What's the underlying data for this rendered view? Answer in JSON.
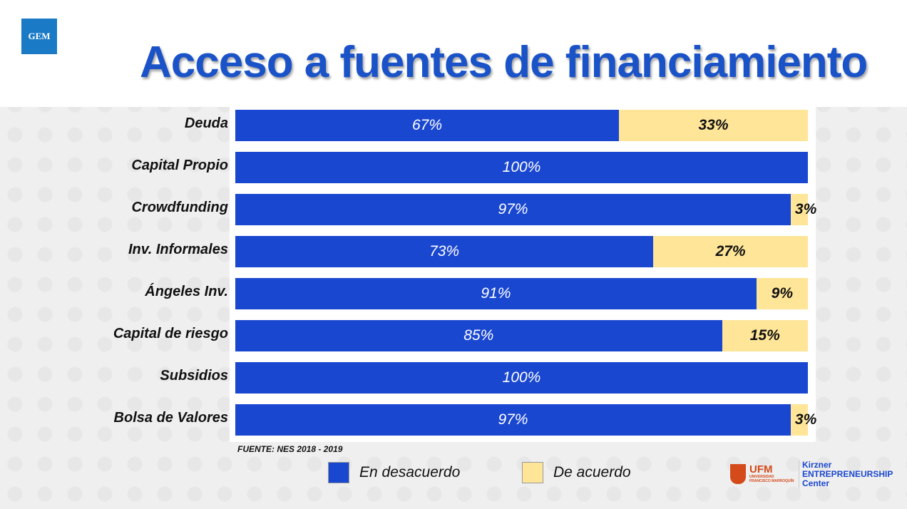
{
  "header": {
    "logo": "GEM",
    "title": "Acceso a fuentes de financiamiento"
  },
  "chart_data": {
    "type": "bar",
    "orientation": "horizontal",
    "stacked": true,
    "categories": [
      "Deuda",
      "Capital Propio",
      "Crowdfunding",
      "Inv. Informales",
      "Ángeles Inv.",
      "Capital de riesgo",
      "Subsidios",
      "Bolsa de Valores"
    ],
    "series": [
      {
        "name": "En desacuerdo",
        "color": "#1a47d0",
        "values": [
          67,
          100,
          97,
          73,
          91,
          85,
          100,
          97
        ],
        "labels": [
          "67%",
          "100%",
          "97%",
          "73%",
          "91%",
          "85%",
          "100%",
          "97%"
        ]
      },
      {
        "name": "De acuerdo",
        "color": "#fee598",
        "values": [
          33,
          0,
          3,
          27,
          9,
          15,
          0,
          3
        ],
        "labels": [
          "33%",
          "",
          "3%",
          "27%",
          "9%",
          "15%",
          "",
          "3%"
        ]
      }
    ],
    "xlim": [
      0,
      100
    ],
    "legend": "bottom",
    "grid": false
  },
  "footer": {
    "source": "FUENTE: NES  2018 - 2019",
    "ufm": "UFM",
    "ufm_sub": "UNIVERSIDAD FRANCISCO MARROQUÍN",
    "kirzner": "Kirzner ENTREPRENEURSHIP Center"
  }
}
